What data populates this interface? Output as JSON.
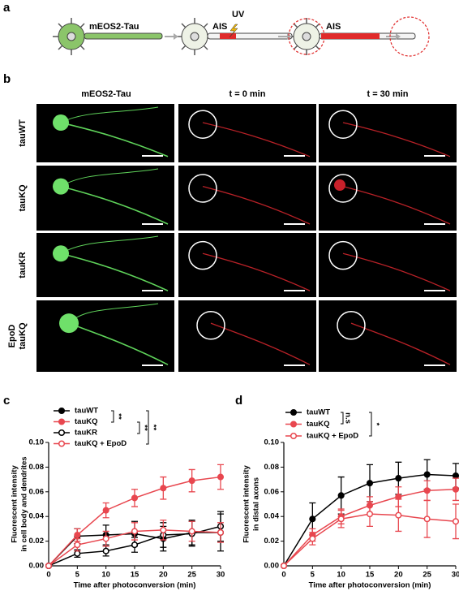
{
  "panel_labels": [
    "a",
    "b",
    "c",
    "d"
  ],
  "schematic": {
    "labels": [
      "mEOS2-Tau",
      "AIS",
      "UV",
      "AIS"
    ]
  },
  "microscopy": {
    "columns": [
      "mEOS2-Tau",
      "t = 0 min",
      "t = 30 min"
    ],
    "rows": [
      [
        "tauWT"
      ],
      [
        "tauKQ"
      ],
      [
        "tauKR"
      ],
      [
        "EpoD",
        "tauKQ"
      ]
    ]
  },
  "chart_data": [
    {
      "type": "line",
      "y_label": [
        "Fluorescent intensity",
        "in cell body and dendrites"
      ],
      "x_label": "Time after photoconversion (min)",
      "x": [
        0,
        5,
        10,
        15,
        20,
        25,
        30
      ],
      "xlim": [
        0,
        30
      ],
      "xticks": [
        0,
        5,
        10,
        15,
        20,
        25,
        30
      ],
      "ylim": [
        0,
        0.1
      ],
      "yticks": [
        {
          "value": 0,
          "label": "0.00"
        },
        {
          "value": 0.02,
          "label": "0.02"
        },
        {
          "value": 0.04,
          "label": "0.04"
        },
        {
          "value": 0.06,
          "label": "0.06"
        },
        {
          "value": 0.08,
          "label": "0.08"
        },
        {
          "value": 0.1,
          "label": "0.10"
        }
      ],
      "annotations": [
        "**",
        "**",
        "**"
      ],
      "series": [
        {
          "name": "tauWT",
          "color": "#000000",
          "marker": "filled",
          "values": [
            0,
            0.024,
            0.025,
            0.026,
            0.022,
            0.027,
            0.027
          ],
          "errors": [
            0,
            0.006,
            0.008,
            0.01,
            0.01,
            0.01,
            0.015
          ]
        },
        {
          "name": "tauKQ",
          "color": "#e8474f",
          "marker": "filled",
          "values": [
            0,
            0.025,
            0.045,
            0.055,
            0.063,
            0.069,
            0.072
          ],
          "errors": [
            0,
            0.005,
            0.006,
            0.007,
            0.009,
            0.009,
            0.01
          ]
        },
        {
          "name": "tauKR",
          "color": "#000000",
          "marker": "open",
          "values": [
            0,
            0.01,
            0.012,
            0.017,
            0.025,
            0.026,
            0.032
          ],
          "errors": [
            0,
            0.003,
            0.004,
            0.006,
            0.01,
            0.01,
            0.012
          ]
        },
        {
          "name": "tauKQ + EpoD",
          "color": "#e8474f",
          "marker": "open",
          "values": [
            0,
            0.017,
            0.022,
            0.028,
            0.029,
            0.028,
            0.027
          ],
          "errors": [
            0,
            0.005,
            0.006,
            0.007,
            0.008,
            0.008,
            0.008
          ]
        }
      ]
    },
    {
      "type": "line",
      "y_label": [
        "Fluorescent intensity",
        "in distal axons"
      ],
      "x_label": "Time after photoconversion (min)",
      "x": [
        0,
        5,
        10,
        15,
        20,
        25,
        30
      ],
      "xlim": [
        0,
        30
      ],
      "xticks": [
        0,
        5,
        10,
        15,
        20,
        25,
        30
      ],
      "ylim": [
        0,
        0.1
      ],
      "yticks": [
        {
          "value": 0,
          "label": "0.00"
        },
        {
          "value": 0.02,
          "label": "0.02"
        },
        {
          "value": 0.04,
          "label": "0.04"
        },
        {
          "value": 0.06,
          "label": "0.06"
        },
        {
          "value": 0.08,
          "label": "0.08"
        },
        {
          "value": 0.1,
          "label": "0.10"
        }
      ],
      "annotations": [
        "n.s",
        "*"
      ],
      "series": [
        {
          "name": "tauWT",
          "color": "#000000",
          "marker": "filled",
          "values": [
            0,
            0.038,
            0.057,
            0.067,
            0.071,
            0.074,
            0.073
          ],
          "errors": [
            0,
            0.013,
            0.015,
            0.015,
            0.013,
            0.012,
            0.01
          ]
        },
        {
          "name": "tauKQ",
          "color": "#e8474f",
          "marker": "filled",
          "values": [
            0,
            0.025,
            0.04,
            0.049,
            0.056,
            0.061,
            0.062
          ],
          "errors": [
            0,
            0.005,
            0.006,
            0.007,
            0.008,
            0.008,
            0.009
          ]
        },
        {
          "name": "tauKQ + EpoD",
          "color": "#e8474f",
          "marker": "open",
          "values": [
            0,
            0.022,
            0.038,
            0.042,
            0.041,
            0.038,
            0.036
          ],
          "errors": [
            0,
            0.005,
            0.007,
            0.01,
            0.013,
            0.015,
            0.014
          ]
        }
      ]
    }
  ]
}
